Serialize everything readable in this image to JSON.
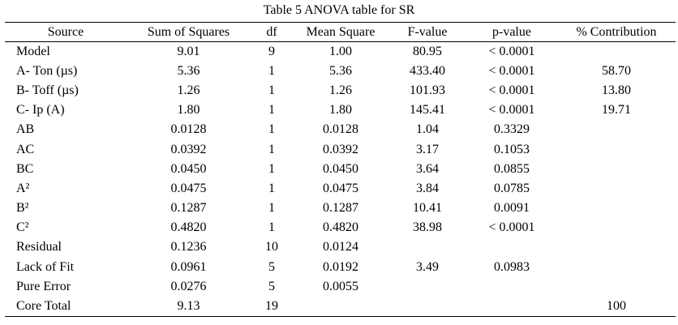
{
  "table": {
    "caption": "Table 5 ANOVA table for SR",
    "headers": {
      "source": "Source",
      "sum_of_squares": "Sum of Squares",
      "df": "df",
      "mean_square": "Mean Square",
      "f_value": "F-value",
      "p_value": "p-value",
      "contribution": "% Contribution"
    },
    "rows": [
      {
        "source": "Model",
        "ss": "9.01",
        "df": "9",
        "ms": "1.00",
        "f": "80.95",
        "p": "< 0.0001",
        "pc": ""
      },
      {
        "source": "A- Ton (µs)",
        "ss": "5.36",
        "df": "1",
        "ms": "5.36",
        "f": "433.40",
        "p": "< 0.0001",
        "pc": "58.70"
      },
      {
        "source": "B- Toff (µs)",
        "ss": "1.26",
        "df": "1",
        "ms": "1.26",
        "f": "101.93",
        "p": "< 0.0001",
        "pc": "13.80"
      },
      {
        "source": "C- Ip (A)",
        "ss": "1.80",
        "df": "1",
        "ms": "1.80",
        "f": "145.41",
        "p": "< 0.0001",
        "pc": "19.71"
      },
      {
        "source": "AB",
        "ss": "0.0128",
        "df": "1",
        "ms": "0.0128",
        "f": "1.04",
        "p": "0.3329",
        "pc": ""
      },
      {
        "source": "AC",
        "ss": "0.0392",
        "df": "1",
        "ms": "0.0392",
        "f": "3.17",
        "p": "0.1053",
        "pc": ""
      },
      {
        "source": "BC",
        "ss": "0.0450",
        "df": "1",
        "ms": "0.0450",
        "f": "3.64",
        "p": "0.0855",
        "pc": ""
      },
      {
        "source": "A²",
        "ss": "0.0475",
        "df": "1",
        "ms": "0.0475",
        "f": "3.84",
        "p": "0.0785",
        "pc": ""
      },
      {
        "source": "B²",
        "ss": "0.1287",
        "df": "1",
        "ms": "0.1287",
        "f": "10.41",
        "p": "0.0091",
        "pc": ""
      },
      {
        "source": "C²",
        "ss": "0.4820",
        "df": "1",
        "ms": "0.4820",
        "f": "38.98",
        "p": "< 0.0001",
        "pc": ""
      },
      {
        "source": "Residual",
        "ss": "0.1236",
        "df": "10",
        "ms": "0.0124",
        "f": "",
        "p": "",
        "pc": ""
      },
      {
        "source": "Lack of Fit",
        "ss": "0.0961",
        "df": "5",
        "ms": "0.0192",
        "f": "3.49",
        "p": "0.0983",
        "pc": ""
      },
      {
        "source": "Pure Error",
        "ss": "0.0276",
        "df": "5",
        "ms": "0.0055",
        "f": "",
        "p": "",
        "pc": ""
      },
      {
        "source": "Core Total",
        "ss": "9.13",
        "df": "19",
        "ms": "",
        "f": "",
        "p": "",
        "pc": "100"
      }
    ]
  }
}
